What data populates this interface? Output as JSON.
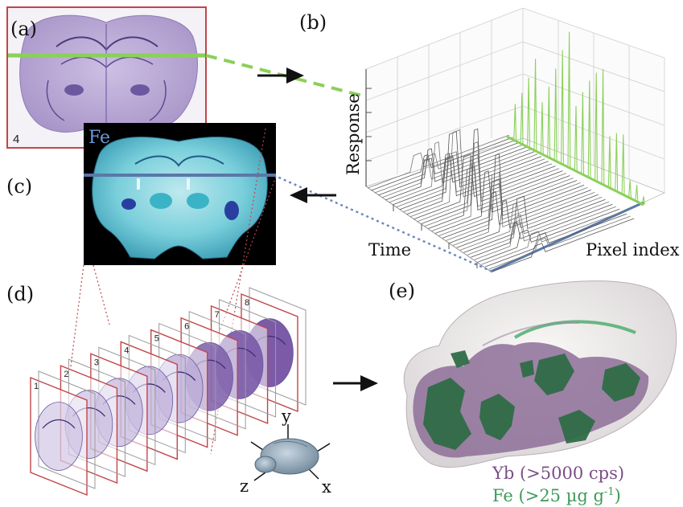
{
  "panels": {
    "a": "(a)",
    "b": "(b)",
    "c": "(c)",
    "d": "(d)",
    "e": "(e)"
  },
  "panel_a": {
    "slice_number": "4"
  },
  "panel_b": {
    "ylabel": "Response",
    "xlabel": "Time",
    "zlabel": "Pixel index"
  },
  "panel_c": {
    "element": "Fe"
  },
  "panel_d": {
    "slice_numbers": [
      "1",
      "2",
      "3",
      "4",
      "5",
      "6",
      "7",
      "8"
    ],
    "axes": {
      "x": "x",
      "y": "y",
      "z": "z"
    }
  },
  "panel_e": {
    "legend_yb": "Yb (>5000 cps)",
    "legend_fe_prefix": "Fe (>25 µg g",
    "legend_fe_exp": "-1",
    "legend_fe_suffix": ")"
  },
  "colors": {
    "frame_red": "#c0464a",
    "green_line": "#8bd05a",
    "blue_line": "#5a78a8",
    "tissue_purple": "#b9a9d6",
    "fe_cyan": "#5fc0cf",
    "yb_purple": "#8d6f98",
    "fe_green": "#2f6b47"
  }
}
